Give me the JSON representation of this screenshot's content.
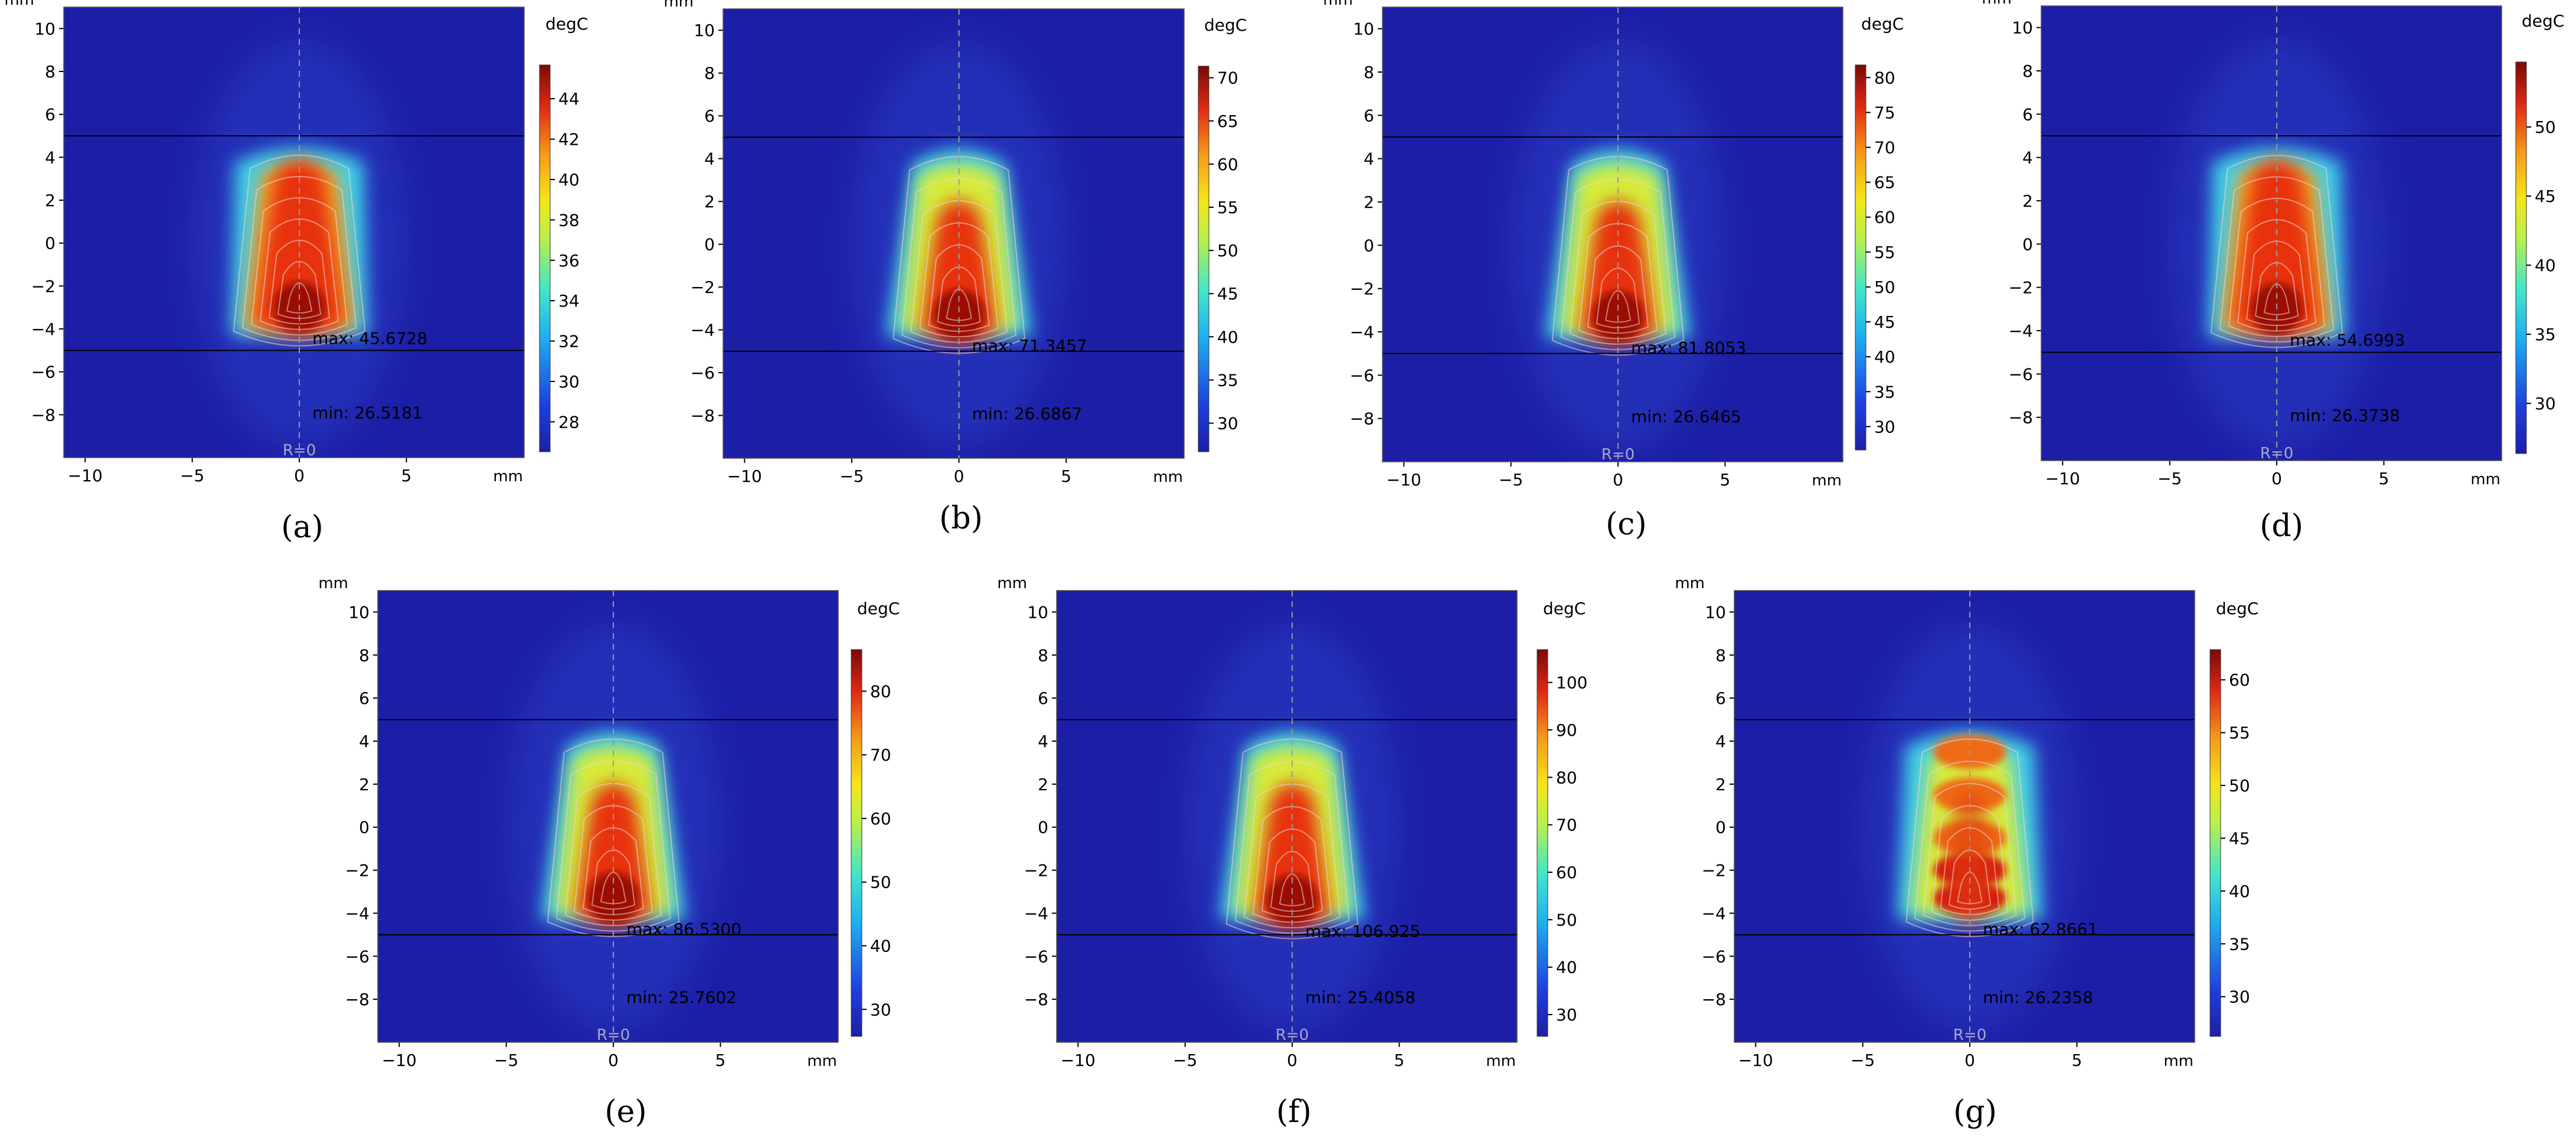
{
  "figure": {
    "colors": {
      "background_blue": "#1c1fa6",
      "grid_line": "#000000",
      "dashed_axis": "#9a9a9a",
      "contour": "#f3d6d6",
      "text": "#000000"
    }
  },
  "chart_data": [
    {
      "type": "heatmap",
      "panel_label": "(a)",
      "xlabel": "mm",
      "ylabel": "mm",
      "colorbar_label": "degC",
      "x_ticks": [
        "−10",
        "−5",
        "0",
        "5"
      ],
      "x_tick_values": [
        -10,
        -5,
        0,
        5
      ],
      "y_ticks": [
        "10",
        "8",
        "6",
        "4",
        "2",
        "0",
        "−2",
        "−4",
        "−6",
        "−8"
      ],
      "y_tick_values": [
        10,
        8,
        6,
        4,
        2,
        0,
        -2,
        -4,
        -6,
        -8
      ],
      "xlim": [
        -11,
        10.5
      ],
      "ylim": [
        -10,
        11
      ],
      "horizontal_lines_y": [
        5,
        -5
      ],
      "axis_label": "R=0",
      "max_text": "max: 45.6728",
      "min_text": "min: 26.5181",
      "max_value": 45.6728,
      "min_value": 26.5181,
      "hotspot": {
        "x": 0,
        "y": -3
      },
      "colorbar_ticks": [
        "44",
        "42",
        "40",
        "38",
        "36",
        "34",
        "32",
        "30",
        "28"
      ],
      "colorbar_tick_values": [
        44,
        42,
        40,
        38,
        36,
        34,
        32,
        30,
        28
      ],
      "shape": "column",
      "nodes": 1
    },
    {
      "type": "heatmap",
      "panel_label": "(b)",
      "xlabel": "mm",
      "ylabel": "mm",
      "colorbar_label": "degC",
      "x_ticks": [
        "−10",
        "−5",
        "0",
        "5"
      ],
      "x_tick_values": [
        -10,
        -5,
        0,
        5
      ],
      "y_ticks": [
        "10",
        "8",
        "6",
        "4",
        "2",
        "0",
        "−2",
        "−4",
        "−6",
        "−8"
      ],
      "y_tick_values": [
        10,
        8,
        6,
        4,
        2,
        0,
        -2,
        -4,
        -6,
        -8
      ],
      "xlim": [
        -11,
        10.5
      ],
      "ylim": [
        -10,
        11
      ],
      "horizontal_lines_y": [
        5,
        -5
      ],
      "axis_label": "",
      "max_text": "max: 71.3457",
      "min_text": "min: 26.6867",
      "max_value": 71.3457,
      "min_value": 26.6867,
      "hotspot": {
        "x": 0,
        "y": -3.3
      },
      "colorbar_ticks": [
        "70",
        "65",
        "60",
        "55",
        "50",
        "45",
        "40",
        "35",
        "30"
      ],
      "colorbar_tick_values": [
        70,
        65,
        60,
        55,
        50,
        45,
        40,
        35,
        30
      ],
      "shape": "cone",
      "nodes": 1
    },
    {
      "type": "heatmap",
      "panel_label": "(c)",
      "xlabel": "mm",
      "ylabel": "mm",
      "colorbar_label": "degC",
      "x_ticks": [
        "−10",
        "−5",
        "0",
        "5"
      ],
      "x_tick_values": [
        -10,
        -5,
        0,
        5
      ],
      "y_ticks": [
        "10",
        "8",
        "6",
        "4",
        "2",
        "0",
        "−2",
        "−4",
        "−6",
        "−8"
      ],
      "y_tick_values": [
        10,
        8,
        6,
        4,
        2,
        0,
        -2,
        -4,
        -6,
        -8
      ],
      "xlim": [
        -11,
        10.5
      ],
      "ylim": [
        -10,
        11
      ],
      "horizontal_lines_y": [
        5,
        -5
      ],
      "axis_label": "R=0",
      "max_text": "max: 81.8053",
      "min_text": "min: 26.6465",
      "max_value": 81.8053,
      "min_value": 26.6465,
      "hotspot": {
        "x": 0,
        "y": -3.3
      },
      "colorbar_ticks": [
        "80",
        "75",
        "70",
        "65",
        "60",
        "55",
        "50",
        "45",
        "40",
        "35",
        "30"
      ],
      "colorbar_tick_values": [
        80,
        75,
        70,
        65,
        60,
        55,
        50,
        45,
        40,
        35,
        30
      ],
      "shape": "cone",
      "nodes": 1
    },
    {
      "type": "heatmap",
      "panel_label": "(d)",
      "xlabel": "mm",
      "ylabel": "mm",
      "colorbar_label": "degC",
      "x_ticks": [
        "−10",
        "−5",
        "0",
        "5"
      ],
      "x_tick_values": [
        -10,
        -5,
        0,
        5
      ],
      "y_ticks": [
        "10",
        "8",
        "6",
        "4",
        "2",
        "0",
        "−2",
        "−4",
        "−6",
        "−8"
      ],
      "y_tick_values": [
        10,
        8,
        6,
        4,
        2,
        0,
        -2,
        -4,
        -6,
        -8
      ],
      "xlim": [
        -11,
        10.5
      ],
      "ylim": [
        -10,
        11
      ],
      "horizontal_lines_y": [
        5,
        -5
      ],
      "axis_label": "R=0",
      "max_text": "max: 54.6993",
      "min_text": "min: 26.3738",
      "max_value": 54.6993,
      "min_value": 26.3738,
      "hotspot": {
        "x": 0,
        "y": -3
      },
      "colorbar_ticks": [
        "50",
        "45",
        "40",
        "35",
        "30"
      ],
      "colorbar_tick_values": [
        50,
        45,
        40,
        35,
        30
      ],
      "shape": "column",
      "nodes": 1
    },
    {
      "type": "heatmap",
      "panel_label": "(e)",
      "xlabel": "mm",
      "ylabel": "mm",
      "colorbar_label": "degC",
      "x_ticks": [
        "−10",
        "−5",
        "0",
        "5"
      ],
      "x_tick_values": [
        -10,
        -5,
        0,
        5
      ],
      "y_ticks": [
        "10",
        "8",
        "6",
        "4",
        "2",
        "0",
        "−2",
        "−4",
        "−6",
        "−8"
      ],
      "y_tick_values": [
        10,
        8,
        6,
        4,
        2,
        0,
        -2,
        -4,
        -6,
        -8
      ],
      "xlim": [
        -11,
        10.5
      ],
      "ylim": [
        -10,
        11
      ],
      "horizontal_lines_y": [
        5,
        -5
      ],
      "axis_label": "R=0",
      "max_text": "max: 86.5300",
      "min_text": "min: 25.7602",
      "max_value": 86.53,
      "min_value": 25.7602,
      "hotspot": {
        "x": 0,
        "y": -3.3
      },
      "colorbar_ticks": [
        "80",
        "70",
        "60",
        "50",
        "40",
        "30"
      ],
      "colorbar_tick_values": [
        80,
        70,
        60,
        50,
        40,
        30
      ],
      "shape": "cone",
      "nodes": 1
    },
    {
      "type": "heatmap",
      "panel_label": "(f)",
      "xlabel": "mm",
      "ylabel": "mm",
      "colorbar_label": "degC",
      "x_ticks": [
        "−10",
        "−5",
        "0",
        "5"
      ],
      "x_tick_values": [
        -10,
        -5,
        0,
        5
      ],
      "y_ticks": [
        "10",
        "8",
        "6",
        "4",
        "2",
        "0",
        "−2",
        "−4",
        "−6",
        "−8"
      ],
      "y_tick_values": [
        10,
        8,
        6,
        4,
        2,
        0,
        -2,
        -4,
        -6,
        -8
      ],
      "xlim": [
        -11,
        10.5
      ],
      "ylim": [
        -10,
        11
      ],
      "horizontal_lines_y": [
        5,
        -5
      ],
      "axis_label": "R=0",
      "max_text": "max: 106.925",
      "min_text": "min: 25.4058",
      "max_value": 106.925,
      "min_value": 25.4058,
      "hotspot": {
        "x": 0,
        "y": -3.4
      },
      "colorbar_ticks": [
        "100",
        "90",
        "80",
        "70",
        "60",
        "50",
        "40",
        "30"
      ],
      "colorbar_tick_values": [
        100,
        90,
        80,
        70,
        60,
        50,
        40,
        30
      ],
      "shape": "cone",
      "nodes": 1
    },
    {
      "type": "heatmap",
      "panel_label": "(g)",
      "xlabel": "mm",
      "ylabel": "mm",
      "colorbar_label": "degC",
      "x_ticks": [
        "−10",
        "−5",
        "0",
        "5"
      ],
      "x_tick_values": [
        -10,
        -5,
        0,
        5
      ],
      "y_ticks": [
        "10",
        "8",
        "6",
        "4",
        "2",
        "0",
        "−2",
        "−4",
        "−6",
        "−8"
      ],
      "y_tick_values": [
        10,
        8,
        6,
        4,
        2,
        0,
        -2,
        -4,
        -6,
        -8
      ],
      "xlim": [
        -11,
        10.5
      ],
      "ylim": [
        -10,
        11
      ],
      "horizontal_lines_y": [
        5,
        -5
      ],
      "axis_label": "R=0",
      "max_text": "max: 62.8661",
      "min_text": "min: 26.2358",
      "max_value": 62.8661,
      "min_value": 26.2358,
      "hotspot": {
        "x": 0,
        "y": -3.3
      },
      "colorbar_ticks": [
        "60",
        "55",
        "50",
        "45",
        "40",
        "35",
        "30"
      ],
      "colorbar_tick_values": [
        60,
        55,
        50,
        45,
        40,
        35,
        30
      ],
      "shape": "beaded",
      "nodes": 5
    }
  ]
}
